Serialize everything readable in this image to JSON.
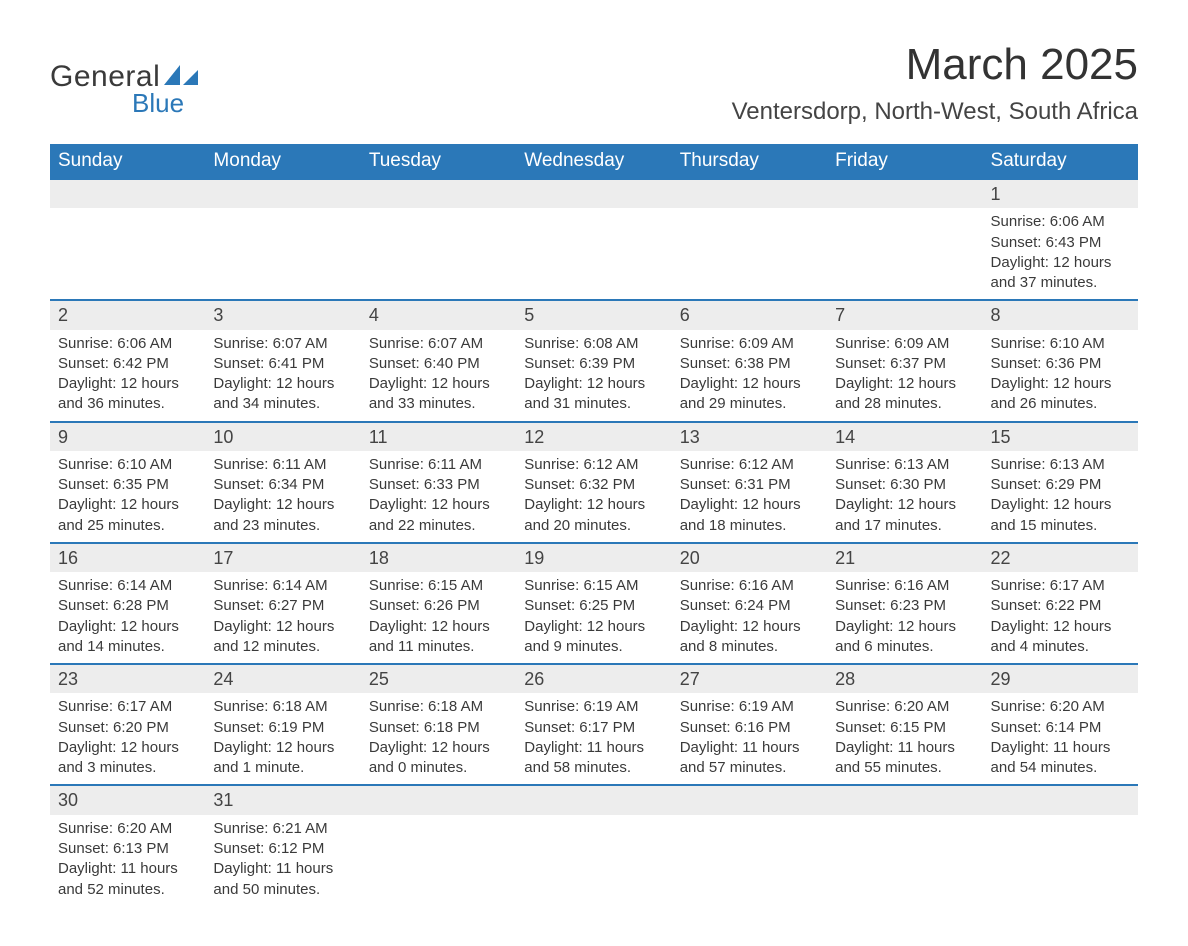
{
  "brand": {
    "general": "General",
    "blue": "Blue",
    "accent": "#2b78b8"
  },
  "title": "March 2025",
  "location": "Ventersdorp, North-West, South Africa",
  "dow": [
    "Sunday",
    "Monday",
    "Tuesday",
    "Wednesday",
    "Thursday",
    "Friday",
    "Saturday"
  ],
  "style": {
    "header_bg": "#2b78b8",
    "header_fg": "#ffffff",
    "bar_bg": "#ededed",
    "bar_border": "#2b78b8",
    "text": "#3a3a3a",
    "title_fontsize": 44,
    "location_fontsize": 24,
    "dow_fontsize": 19,
    "body_fontsize": 15
  },
  "weeks": [
    [
      {
        "empty": true
      },
      {
        "empty": true
      },
      {
        "empty": true
      },
      {
        "empty": true
      },
      {
        "empty": true
      },
      {
        "empty": true
      },
      {
        "n": "1",
        "sr": "Sunrise: 6:06 AM",
        "ss": "Sunset: 6:43 PM",
        "dl1": "Daylight: 12 hours",
        "dl2": "and 37 minutes."
      }
    ],
    [
      {
        "n": "2",
        "sr": "Sunrise: 6:06 AM",
        "ss": "Sunset: 6:42 PM",
        "dl1": "Daylight: 12 hours",
        "dl2": "and 36 minutes."
      },
      {
        "n": "3",
        "sr": "Sunrise: 6:07 AM",
        "ss": "Sunset: 6:41 PM",
        "dl1": "Daylight: 12 hours",
        "dl2": "and 34 minutes."
      },
      {
        "n": "4",
        "sr": "Sunrise: 6:07 AM",
        "ss": "Sunset: 6:40 PM",
        "dl1": "Daylight: 12 hours",
        "dl2": "and 33 minutes."
      },
      {
        "n": "5",
        "sr": "Sunrise: 6:08 AM",
        "ss": "Sunset: 6:39 PM",
        "dl1": "Daylight: 12 hours",
        "dl2": "and 31 minutes."
      },
      {
        "n": "6",
        "sr": "Sunrise: 6:09 AM",
        "ss": "Sunset: 6:38 PM",
        "dl1": "Daylight: 12 hours",
        "dl2": "and 29 minutes."
      },
      {
        "n": "7",
        "sr": "Sunrise: 6:09 AM",
        "ss": "Sunset: 6:37 PM",
        "dl1": "Daylight: 12 hours",
        "dl2": "and 28 minutes."
      },
      {
        "n": "8",
        "sr": "Sunrise: 6:10 AM",
        "ss": "Sunset: 6:36 PM",
        "dl1": "Daylight: 12 hours",
        "dl2": "and 26 minutes."
      }
    ],
    [
      {
        "n": "9",
        "sr": "Sunrise: 6:10 AM",
        "ss": "Sunset: 6:35 PM",
        "dl1": "Daylight: 12 hours",
        "dl2": "and 25 minutes."
      },
      {
        "n": "10",
        "sr": "Sunrise: 6:11 AM",
        "ss": "Sunset: 6:34 PM",
        "dl1": "Daylight: 12 hours",
        "dl2": "and 23 minutes."
      },
      {
        "n": "11",
        "sr": "Sunrise: 6:11 AM",
        "ss": "Sunset: 6:33 PM",
        "dl1": "Daylight: 12 hours",
        "dl2": "and 22 minutes."
      },
      {
        "n": "12",
        "sr": "Sunrise: 6:12 AM",
        "ss": "Sunset: 6:32 PM",
        "dl1": "Daylight: 12 hours",
        "dl2": "and 20 minutes."
      },
      {
        "n": "13",
        "sr": "Sunrise: 6:12 AM",
        "ss": "Sunset: 6:31 PM",
        "dl1": "Daylight: 12 hours",
        "dl2": "and 18 minutes."
      },
      {
        "n": "14",
        "sr": "Sunrise: 6:13 AM",
        "ss": "Sunset: 6:30 PM",
        "dl1": "Daylight: 12 hours",
        "dl2": "and 17 minutes."
      },
      {
        "n": "15",
        "sr": "Sunrise: 6:13 AM",
        "ss": "Sunset: 6:29 PM",
        "dl1": "Daylight: 12 hours",
        "dl2": "and 15 minutes."
      }
    ],
    [
      {
        "n": "16",
        "sr": "Sunrise: 6:14 AM",
        "ss": "Sunset: 6:28 PM",
        "dl1": "Daylight: 12 hours",
        "dl2": "and 14 minutes."
      },
      {
        "n": "17",
        "sr": "Sunrise: 6:14 AM",
        "ss": "Sunset: 6:27 PM",
        "dl1": "Daylight: 12 hours",
        "dl2": "and 12 minutes."
      },
      {
        "n": "18",
        "sr": "Sunrise: 6:15 AM",
        "ss": "Sunset: 6:26 PM",
        "dl1": "Daylight: 12 hours",
        "dl2": "and 11 minutes."
      },
      {
        "n": "19",
        "sr": "Sunrise: 6:15 AM",
        "ss": "Sunset: 6:25 PM",
        "dl1": "Daylight: 12 hours",
        "dl2": "and 9 minutes."
      },
      {
        "n": "20",
        "sr": "Sunrise: 6:16 AM",
        "ss": "Sunset: 6:24 PM",
        "dl1": "Daylight: 12 hours",
        "dl2": "and 8 minutes."
      },
      {
        "n": "21",
        "sr": "Sunrise: 6:16 AM",
        "ss": "Sunset: 6:23 PM",
        "dl1": "Daylight: 12 hours",
        "dl2": "and 6 minutes."
      },
      {
        "n": "22",
        "sr": "Sunrise: 6:17 AM",
        "ss": "Sunset: 6:22 PM",
        "dl1": "Daylight: 12 hours",
        "dl2": "and 4 minutes."
      }
    ],
    [
      {
        "n": "23",
        "sr": "Sunrise: 6:17 AM",
        "ss": "Sunset: 6:20 PM",
        "dl1": "Daylight: 12 hours",
        "dl2": "and 3 minutes."
      },
      {
        "n": "24",
        "sr": "Sunrise: 6:18 AM",
        "ss": "Sunset: 6:19 PM",
        "dl1": "Daylight: 12 hours",
        "dl2": "and 1 minute."
      },
      {
        "n": "25",
        "sr": "Sunrise: 6:18 AM",
        "ss": "Sunset: 6:18 PM",
        "dl1": "Daylight: 12 hours",
        "dl2": "and 0 minutes."
      },
      {
        "n": "26",
        "sr": "Sunrise: 6:19 AM",
        "ss": "Sunset: 6:17 PM",
        "dl1": "Daylight: 11 hours",
        "dl2": "and 58 minutes."
      },
      {
        "n": "27",
        "sr": "Sunrise: 6:19 AM",
        "ss": "Sunset: 6:16 PM",
        "dl1": "Daylight: 11 hours",
        "dl2": "and 57 minutes."
      },
      {
        "n": "28",
        "sr": "Sunrise: 6:20 AM",
        "ss": "Sunset: 6:15 PM",
        "dl1": "Daylight: 11 hours",
        "dl2": "and 55 minutes."
      },
      {
        "n": "29",
        "sr": "Sunrise: 6:20 AM",
        "ss": "Sunset: 6:14 PM",
        "dl1": "Daylight: 11 hours",
        "dl2": "and 54 minutes."
      }
    ],
    [
      {
        "n": "30",
        "sr": "Sunrise: 6:20 AM",
        "ss": "Sunset: 6:13 PM",
        "dl1": "Daylight: 11 hours",
        "dl2": "and 52 minutes."
      },
      {
        "n": "31",
        "sr": "Sunrise: 6:21 AM",
        "ss": "Sunset: 6:12 PM",
        "dl1": "Daylight: 11 hours",
        "dl2": "and 50 minutes."
      },
      {
        "empty": true
      },
      {
        "empty": true
      },
      {
        "empty": true
      },
      {
        "empty": true
      },
      {
        "empty": true
      }
    ]
  ]
}
